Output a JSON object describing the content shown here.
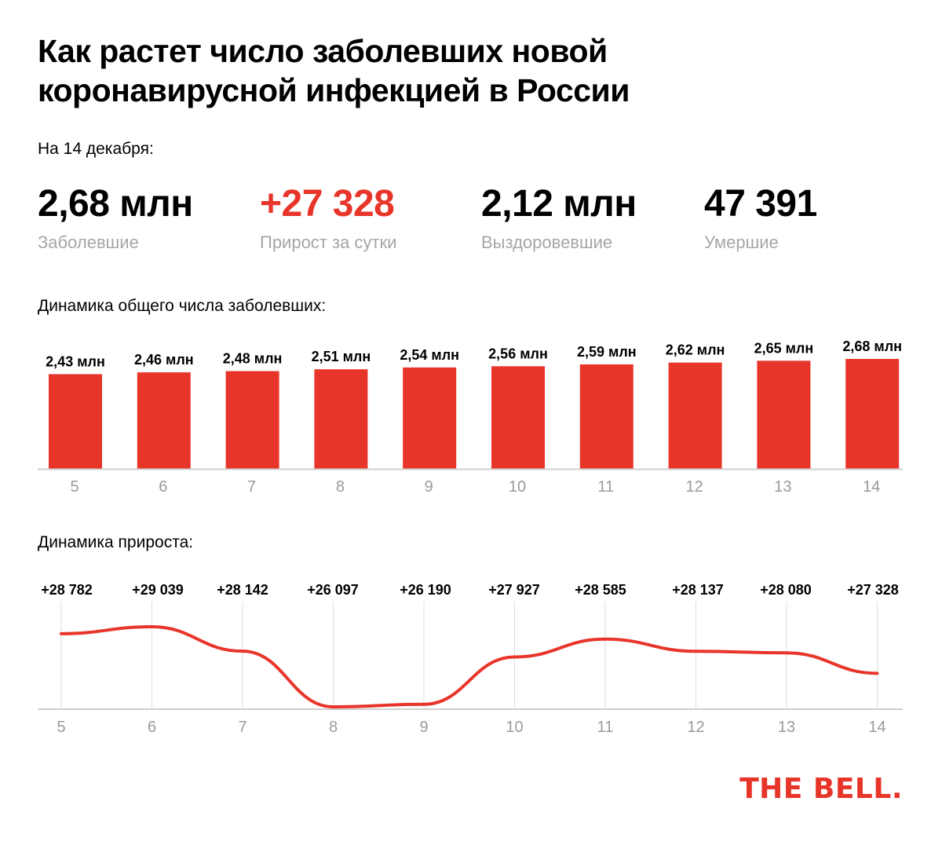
{
  "title": "Как растет число заболевших новой коронавирусной инфекцией в России",
  "date_label": "На 14 декабря:",
  "stats": [
    {
      "value": "2,68 млн",
      "label": "Заболевшие"
    },
    {
      "value": "+27 328",
      "label": "Прирост за сутки"
    },
    {
      "value": "2,12 млн",
      "label": "Выздоровевшие"
    },
    {
      "value": "47 391",
      "label": "Умершие"
    }
  ],
  "colors": {
    "accent": "#e8352a",
    "muted": "#a6a6a6",
    "grid": "#dddddd"
  },
  "logo": "THE BELL.",
  "chart_data": [
    {
      "type": "bar",
      "title": "Динамика общего числа заболевших:",
      "categories": [
        "5",
        "6",
        "7",
        "8",
        "9",
        "10",
        "11",
        "12",
        "13",
        "14"
      ],
      "values": [
        2.43,
        2.46,
        2.48,
        2.51,
        2.54,
        2.56,
        2.59,
        2.62,
        2.65,
        2.68
      ],
      "labels": [
        "2,43 млн",
        "2,46 млн",
        "2,48 млн",
        "2,51 млн",
        "2,54 млн",
        "2,56 млн",
        "2,59 млн",
        "2,62 млн",
        "2,65 млн",
        "2,68 млн"
      ],
      "unit": "млн",
      "ylim": [
        0,
        2.8
      ]
    },
    {
      "type": "line",
      "title": "Динамика прироста:",
      "categories": [
        "5",
        "6",
        "7",
        "8",
        "9",
        "10",
        "11",
        "12",
        "13",
        "14"
      ],
      "values": [
        28782,
        29039,
        28142,
        26097,
        26190,
        27927,
        28585,
        28137,
        28080,
        27328
      ],
      "labels": [
        "+28 782",
        "+29 039",
        "+28 142",
        "+26 097",
        "+26 190",
        "+27 927",
        "+28 585",
        "+28 137",
        "+28 080",
        "+27 328"
      ],
      "ylim": [
        26097,
        29039
      ],
      "grid": true
    }
  ]
}
